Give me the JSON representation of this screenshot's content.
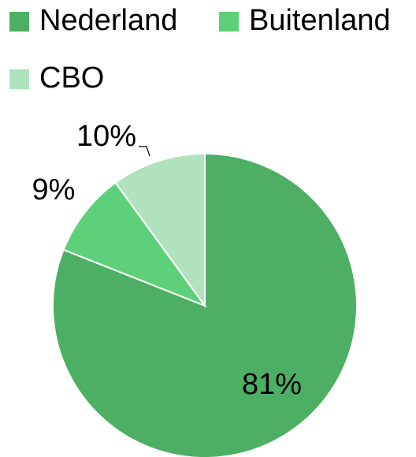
{
  "chart_data": {
    "type": "pie",
    "categories": [
      "Nederland",
      "Buitenland",
      "CBO"
    ],
    "values": [
      81,
      9,
      10
    ],
    "value_labels": [
      "81%",
      "9%",
      "10%"
    ],
    "colors": [
      "#4caf63",
      "#5fd07a",
      "#b0e3bd"
    ],
    "legend": "top"
  }
}
